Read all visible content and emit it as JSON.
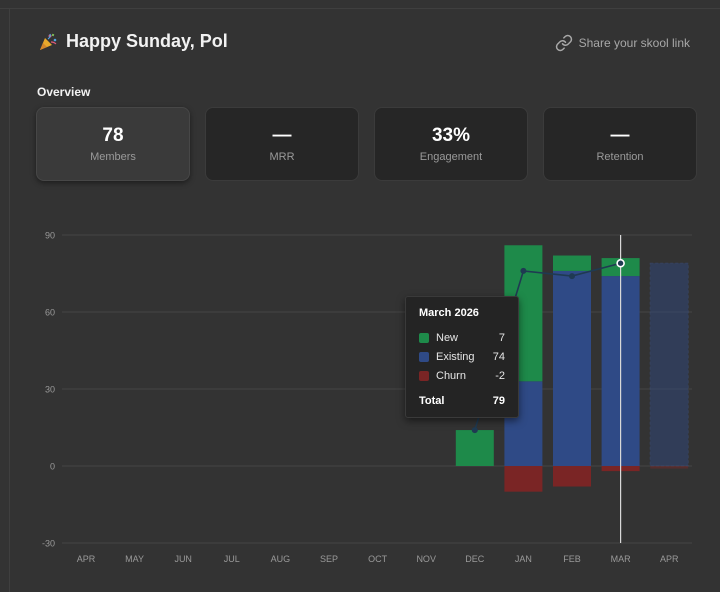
{
  "header": {
    "greeting": "Happy Sunday, Pol",
    "share_link": "Share your skool link"
  },
  "overview": {
    "title": "Overview",
    "cards": [
      {
        "value": "78",
        "label": "Members",
        "active": true
      },
      {
        "value": "—",
        "label": "MRR",
        "active": false
      },
      {
        "value": "33%",
        "label": "Engagement",
        "active": false
      },
      {
        "value": "—",
        "label": "Retention",
        "active": false
      }
    ]
  },
  "colors": {
    "new": "#1e8a4a",
    "existing": "#2f4a86",
    "churn": "#7a2525",
    "line": "#1f3a52",
    "background": "#333333"
  },
  "chart_data": {
    "type": "bar",
    "stacked": true,
    "categories": [
      "APR",
      "MAY",
      "JUN",
      "JUL",
      "AUG",
      "SEP",
      "OCT",
      "NOV",
      "DEC",
      "JAN",
      "FEB",
      "MAR",
      "APR"
    ],
    "series": [
      {
        "name": "New",
        "values": [
          0,
          0,
          0,
          0,
          0,
          0,
          0,
          0,
          14,
          53,
          6,
          7,
          0
        ]
      },
      {
        "name": "Existing",
        "values": [
          0,
          0,
          0,
          0,
          0,
          0,
          0,
          0,
          0,
          33,
          76,
          74,
          79
        ]
      },
      {
        "name": "Churn",
        "values": [
          0,
          0,
          0,
          0,
          0,
          0,
          0,
          0,
          0,
          -10,
          -8,
          -2,
          -1
        ]
      }
    ],
    "total_line": [
      null,
      null,
      null,
      null,
      null,
      null,
      null,
      null,
      14,
      76,
      74,
      79,
      null
    ],
    "ylim": [
      -30,
      90
    ],
    "yticks": [
      90,
      60,
      30,
      0,
      -30
    ],
    "grid": true,
    "hover_index": 11,
    "projected_index": 12
  },
  "tooltip": {
    "title": "March 2026",
    "rows": [
      {
        "label": "New",
        "value": "7"
      },
      {
        "label": "Existing",
        "value": "74"
      },
      {
        "label": "Churn",
        "value": "-2"
      }
    ],
    "total_label": "Total",
    "total_value": "79"
  }
}
